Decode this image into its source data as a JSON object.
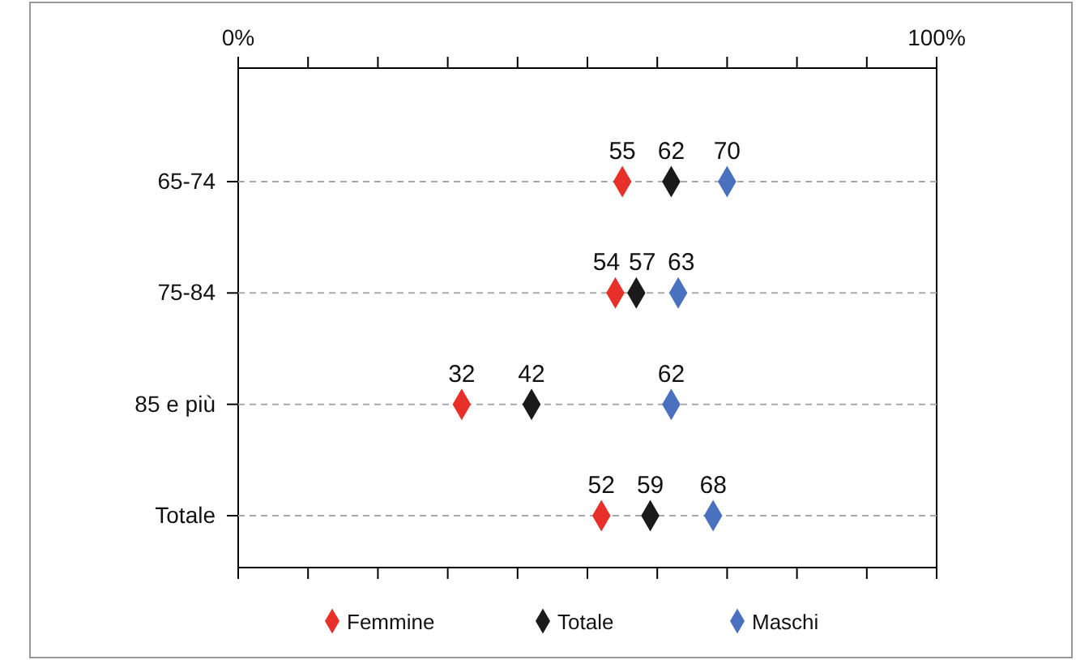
{
  "chart_data": {
    "type": "scatter",
    "orientation": "horizontal",
    "categories": [
      "65-74",
      "75-84",
      "85 e più",
      "Totale"
    ],
    "series": [
      {
        "name": "Femmine",
        "color": "#e8302a",
        "values": [
          55,
          54,
          32,
          52
        ]
      },
      {
        "name": "Totale",
        "color": "#1a1a1a",
        "values": [
          62,
          57,
          42,
          59
        ]
      },
      {
        "name": "Maschi",
        "color": "#4a70c0",
        "values": [
          70,
          63,
          62,
          68
        ]
      }
    ],
    "xlim": [
      0,
      100
    ],
    "xticks": [
      {
        "value": 0,
        "label": "0%"
      },
      {
        "value": 10,
        "label": null
      },
      {
        "value": 20,
        "label": null
      },
      {
        "value": 30,
        "label": null
      },
      {
        "value": 40,
        "label": null
      },
      {
        "value": 50,
        "label": null
      },
      {
        "value": 60,
        "label": null
      },
      {
        "value": 70,
        "label": null
      },
      {
        "value": 80,
        "label": null
      },
      {
        "value": 90,
        "label": null
      },
      {
        "value": 100,
        "label": "100%"
      }
    ],
    "marker": "diamond",
    "data_labels": true,
    "grid": "y",
    "legend": "bottom"
  }
}
